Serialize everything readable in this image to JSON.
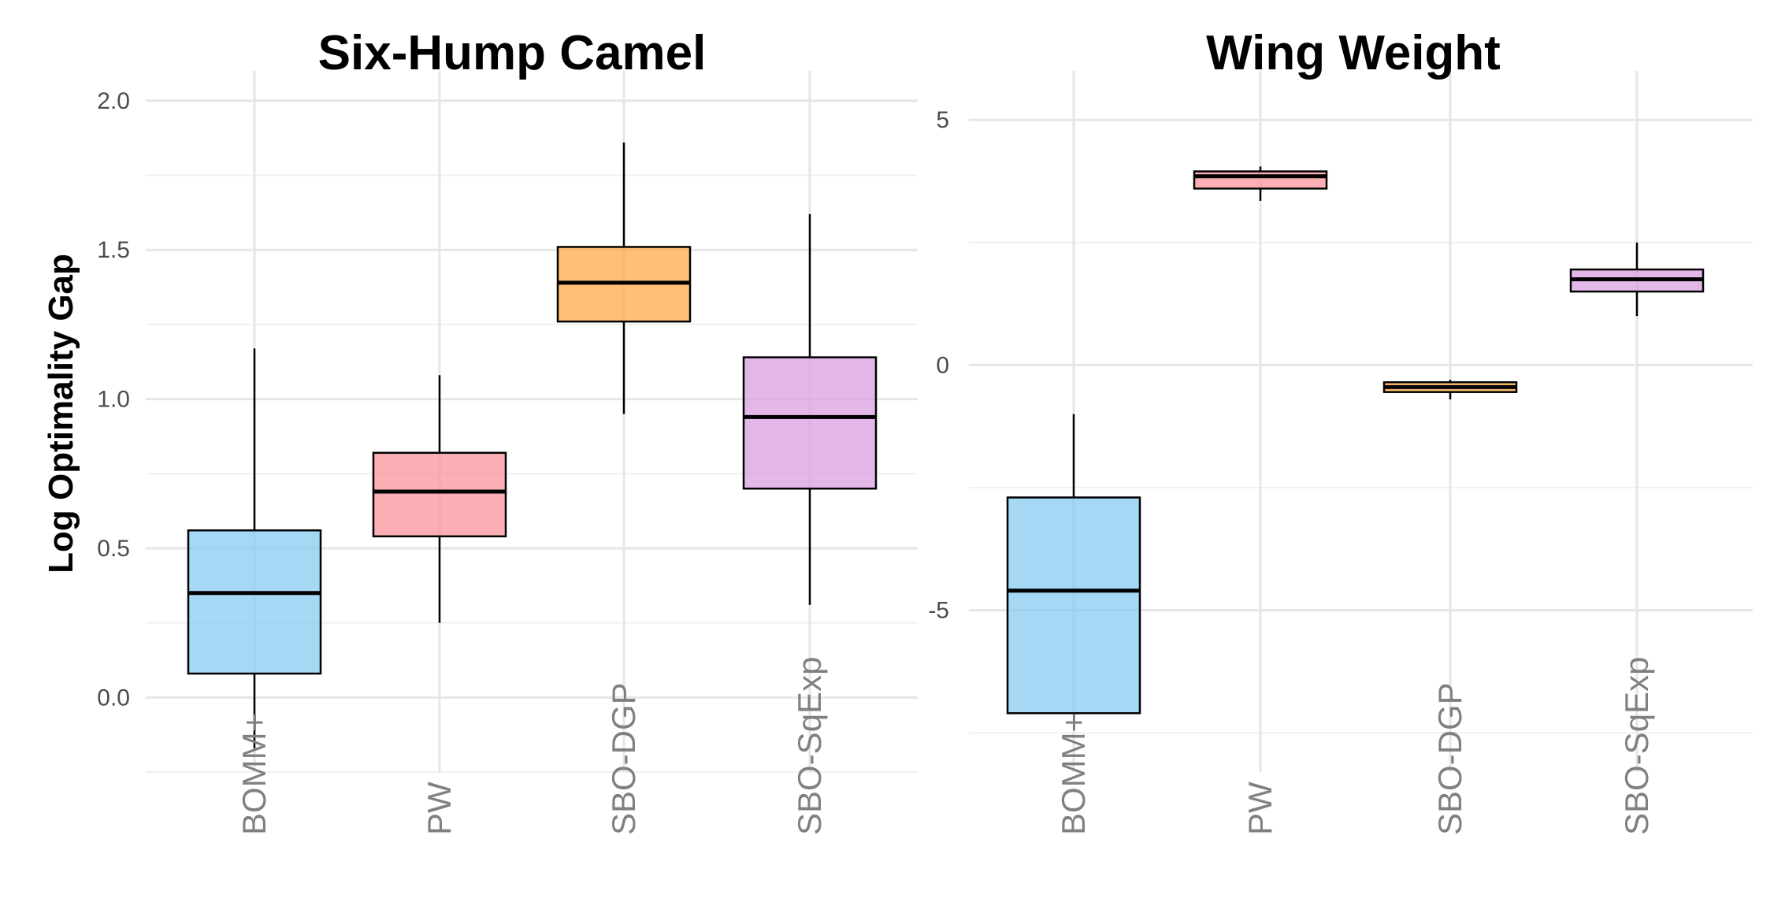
{
  "chart_data": [
    {
      "type": "box",
      "title": "Six-Hump Camel",
      "ylabel": "Log Optimality Gap",
      "ylim": [
        -0.25,
        2.1
      ],
      "yticks": [
        0.0,
        0.5,
        1.0,
        1.5,
        2.0
      ],
      "ytick_labels": [
        "0.0",
        "0.5",
        "1.0",
        "1.5",
        "2.0"
      ],
      "categories": [
        "BOMM+",
        "PW",
        "SBO-DGP",
        "SBO-SqExp"
      ],
      "colors": [
        "#7fc8f0",
        "#f98c94",
        "#ffa53a",
        "#d79ae0"
      ],
      "boxes": [
        {
          "whislo": -0.17,
          "q1": 0.08,
          "med": 0.35,
          "q3": 0.56,
          "whishi": 1.17
        },
        {
          "whislo": 0.25,
          "q1": 0.54,
          "med": 0.69,
          "q3": 0.82,
          "whishi": 1.08
        },
        {
          "whislo": 0.95,
          "q1": 1.26,
          "med": 1.39,
          "q3": 1.51,
          "whishi": 1.86
        },
        {
          "whislo": 0.31,
          "q1": 0.7,
          "med": 0.94,
          "q3": 1.14,
          "whishi": 1.62
        }
      ],
      "grid": true
    },
    {
      "type": "box",
      "title": "Wing Weight",
      "ylabel": "",
      "ylim": [
        -8.3,
        6.0
      ],
      "yticks": [
        -5,
        0,
        5
      ],
      "ytick_labels": [
        "-5",
        "0",
        "5"
      ],
      "categories": [
        "BOMM+",
        "PW",
        "SBO-DGP",
        "SBO-SqExp"
      ],
      "colors": [
        "#7fc8f0",
        "#f98c94",
        "#ffa53a",
        "#d79ae0"
      ],
      "boxes": [
        {
          "whislo": -7.1,
          "q1": -7.1,
          "med": -4.6,
          "q3": -2.7,
          "whishi": -1.0
        },
        {
          "whislo": 3.35,
          "q1": 3.6,
          "med": 3.85,
          "q3": 3.95,
          "whishi": 4.05
        },
        {
          "whislo": -0.7,
          "q1": -0.55,
          "med": -0.45,
          "q3": -0.35,
          "whishi": -0.3
        },
        {
          "whislo": 1.0,
          "q1": 1.5,
          "med": 1.75,
          "q3": 1.95,
          "whishi": 2.5
        }
      ],
      "grid": true
    }
  ]
}
